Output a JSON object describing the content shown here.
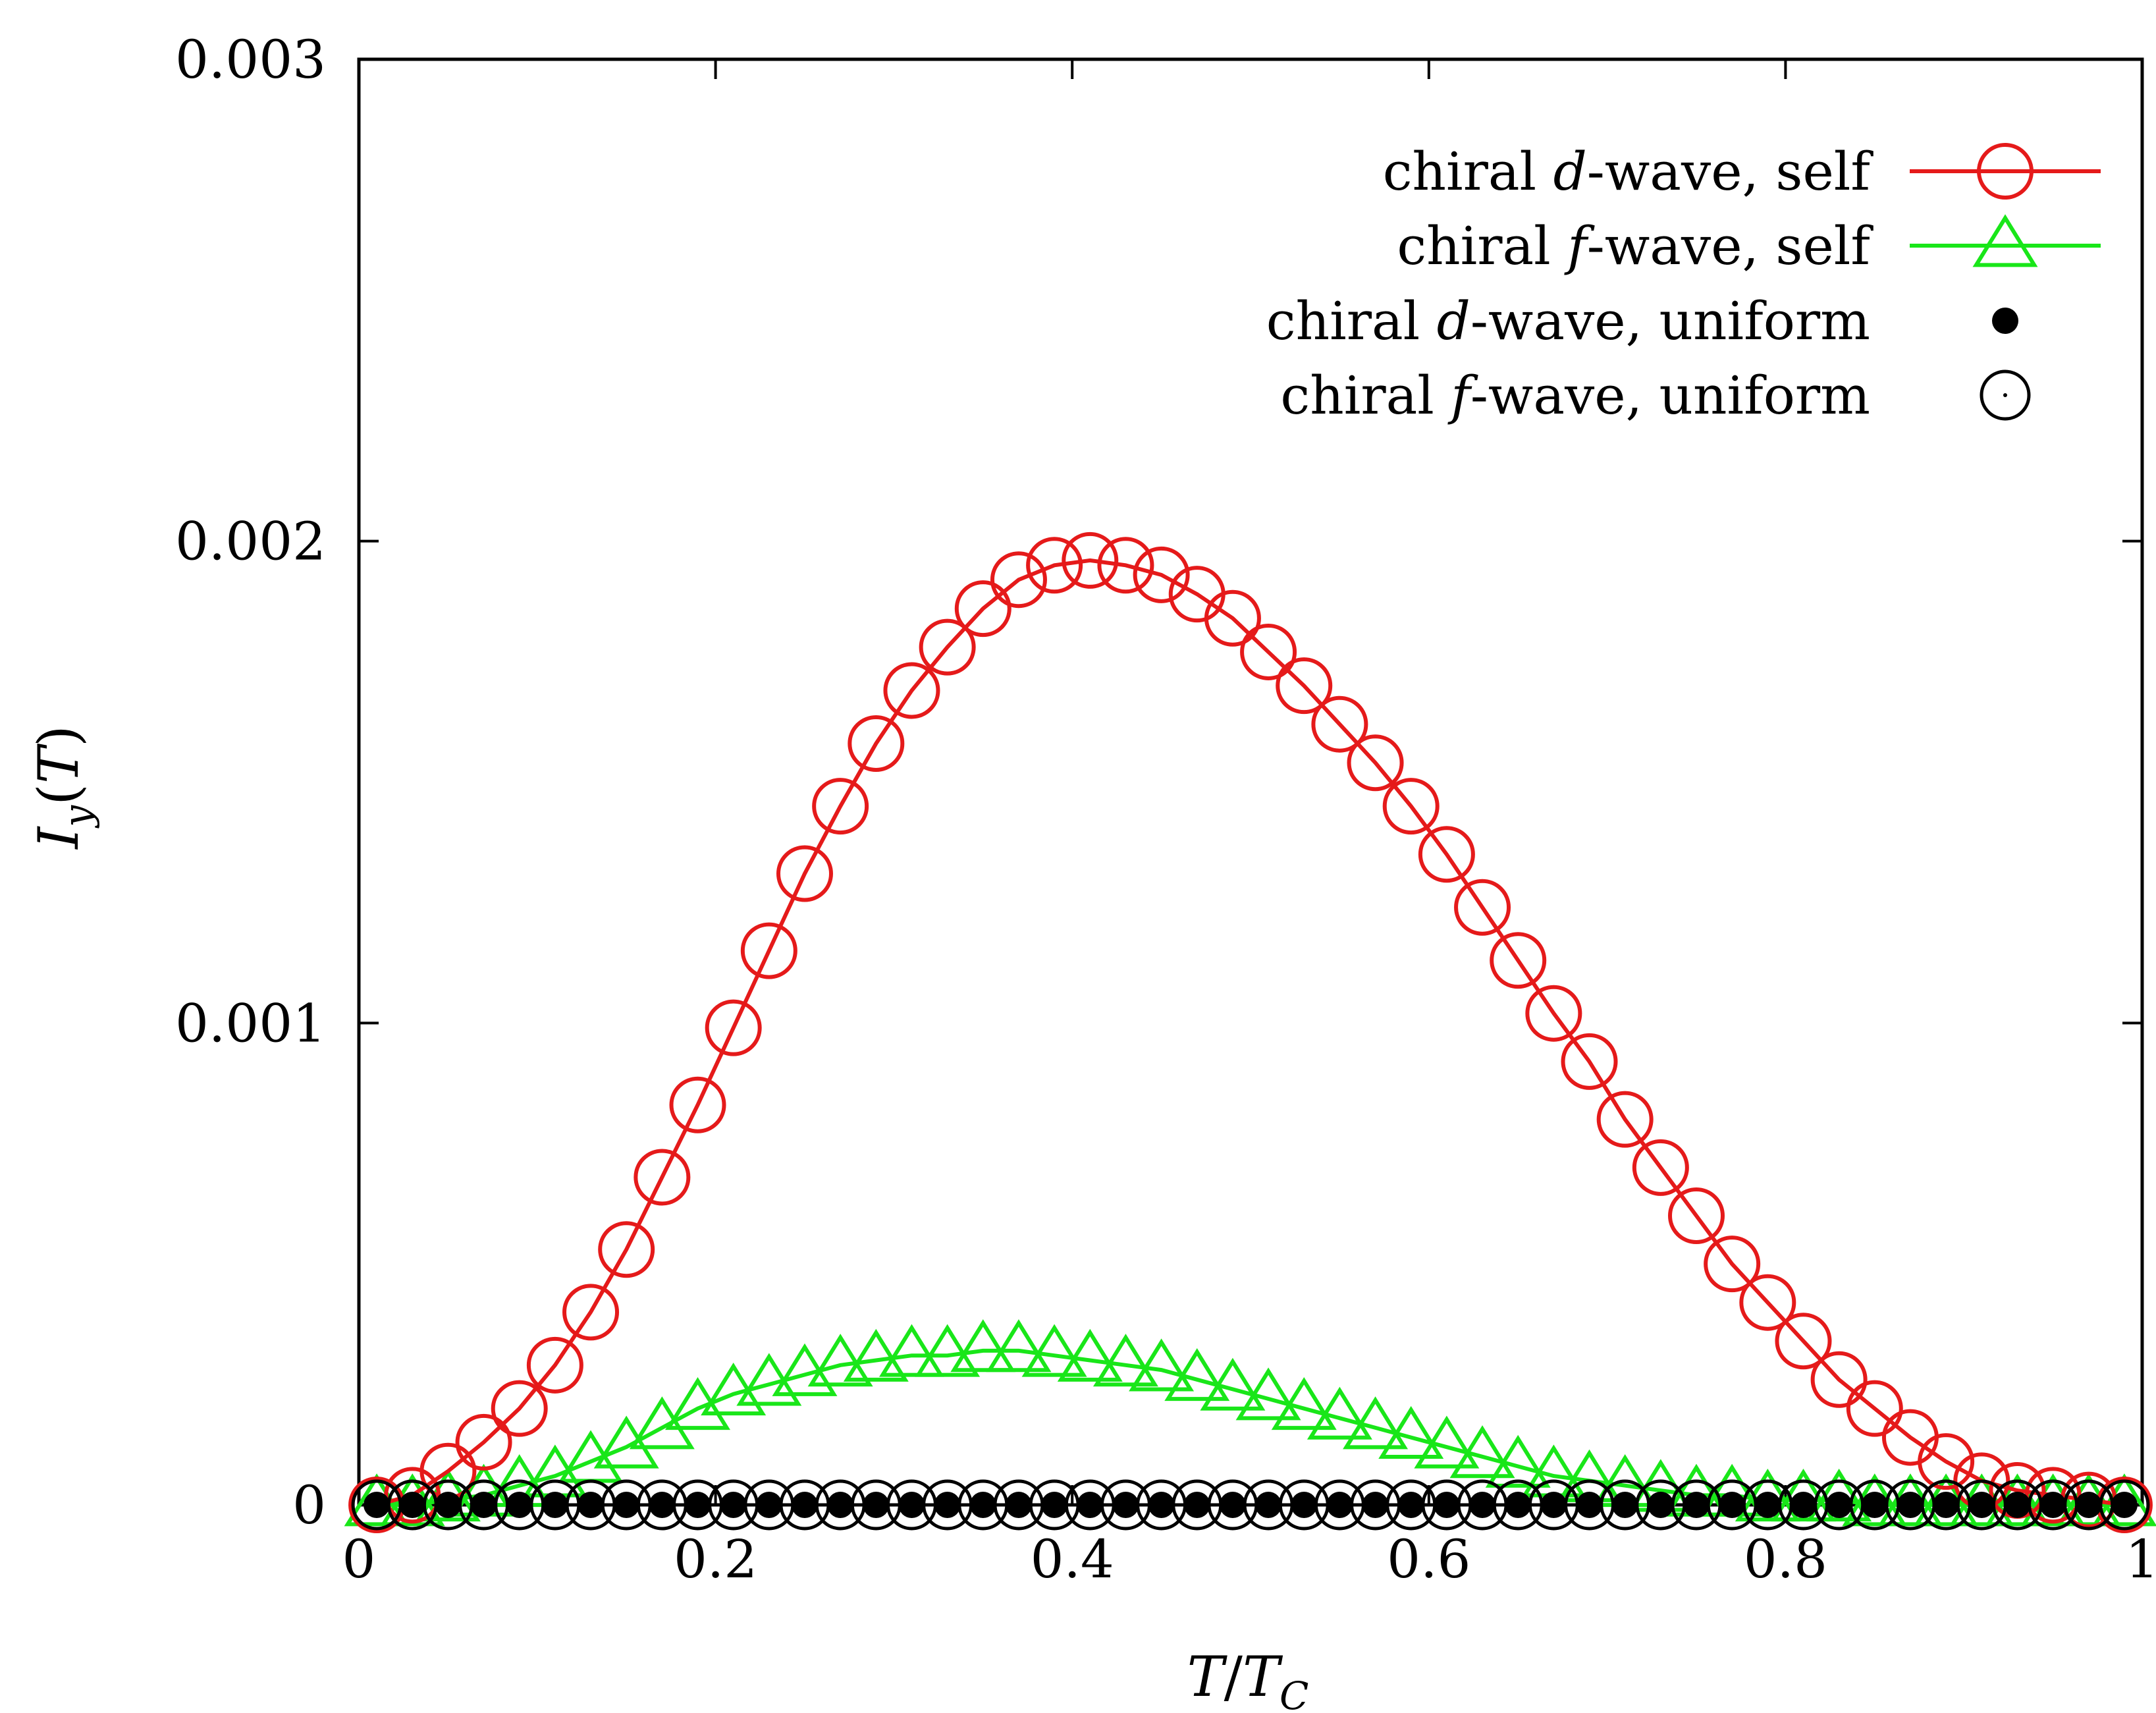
{
  "chart_data": {
    "type": "line",
    "title": "",
    "xlabel": "T/T_C",
    "ylabel": "I_y(T)",
    "xlim": [
      0,
      1
    ],
    "ylim": [
      0,
      0.003
    ],
    "grid": false,
    "legend_position": "top-right",
    "x_ticks": [
      "0",
      "0.2",
      "0.4",
      "0.6",
      "0.8",
      "1"
    ],
    "y_ticks": [
      "0",
      "0.001",
      "0.002",
      "0.003"
    ],
    "colors": {
      "d_self": "#e51a1a",
      "f_self": "#19e619",
      "uniform": "#000000"
    },
    "x": [
      0.01,
      0.03,
      0.05,
      0.07,
      0.09,
      0.11,
      0.13,
      0.15,
      0.17,
      0.19,
      0.21,
      0.23,
      0.25,
      0.27,
      0.29,
      0.31,
      0.33,
      0.35,
      0.37,
      0.39,
      0.41,
      0.43,
      0.45,
      0.47,
      0.49,
      0.51,
      0.53,
      0.55,
      0.57,
      0.59,
      0.61,
      0.63,
      0.65,
      0.67,
      0.69,
      0.71,
      0.73,
      0.75,
      0.77,
      0.79,
      0.81,
      0.83,
      0.85,
      0.87,
      0.89,
      0.91,
      0.93,
      0.95,
      0.97,
      0.99
    ],
    "series": [
      {
        "name": "chiral d-wave, self",
        "name_parts": [
          "chiral ",
          "d",
          "-wave, self"
        ],
        "marker": "open-circle",
        "line": true,
        "values": [
          0.0,
          2e-05,
          7e-05,
          0.00013,
          0.0002,
          0.00029,
          0.0004,
          0.00053,
          0.00068,
          0.00083,
          0.00099,
          0.00115,
          0.00131,
          0.00145,
          0.00158,
          0.00169,
          0.00178,
          0.00186,
          0.00192,
          0.00195,
          0.00196,
          0.00195,
          0.00193,
          0.00189,
          0.00184,
          0.00177,
          0.0017,
          0.00162,
          0.00154,
          0.00145,
          0.00135,
          0.00124,
          0.00113,
          0.00102,
          0.00092,
          0.0008,
          0.0007,
          0.0006,
          0.0005,
          0.00042,
          0.00034,
          0.00026,
          0.0002,
          0.00014,
          9e-05,
          5e-05,
          3e-05,
          2e-05,
          1e-05,
          0.0
        ]
      },
      {
        "name": "chiral f-wave, self",
        "name_parts": [
          "chiral ",
          "f",
          "-wave, self"
        ],
        "marker": "open-triangle",
        "line": true,
        "values": [
          0.0,
          0.0,
          1e-05,
          2e-05,
          4e-05,
          6e-05,
          9e-05,
          0.00012,
          0.00016,
          0.0002,
          0.00023,
          0.00025,
          0.00027,
          0.00029,
          0.0003,
          0.00031,
          0.00031,
          0.00032,
          0.00032,
          0.00031,
          0.0003,
          0.00029,
          0.00028,
          0.00026,
          0.00024,
          0.00022,
          0.0002,
          0.00018,
          0.00016,
          0.00014,
          0.00012,
          0.0001,
          8e-05,
          6e-05,
          5e-05,
          4e-05,
          3e-05,
          2e-05,
          2e-05,
          1e-05,
          1e-05,
          1e-05,
          0.0,
          0.0,
          0.0,
          0.0,
          0.0,
          0.0,
          0.0,
          0.0
        ]
      },
      {
        "name": "chiral d-wave, uniform",
        "name_parts": [
          "chiral ",
          "d",
          "-wave, uniform"
        ],
        "marker": "filled-dot",
        "line": false,
        "values": [
          0.0,
          0.0,
          0.0,
          0.0,
          0.0,
          0.0,
          0.0,
          0.0,
          0.0,
          0.0,
          0.0,
          0.0,
          0.0,
          0.0,
          0.0,
          0.0,
          0.0,
          0.0,
          0.0,
          0.0,
          0.0,
          0.0,
          0.0,
          0.0,
          0.0,
          0.0,
          0.0,
          0.0,
          0.0,
          0.0,
          0.0,
          0.0,
          0.0,
          0.0,
          0.0,
          0.0,
          0.0,
          0.0,
          0.0,
          0.0,
          0.0,
          0.0,
          0.0,
          0.0,
          0.0,
          0.0,
          0.0,
          0.0,
          0.0,
          0.0
        ]
      },
      {
        "name": "chiral f-wave, uniform",
        "name_parts": [
          "chiral ",
          "f",
          "-wave, uniform"
        ],
        "marker": "dotted-circle",
        "line": false,
        "values": [
          0.0,
          0.0,
          0.0,
          0.0,
          0.0,
          0.0,
          0.0,
          0.0,
          0.0,
          0.0,
          0.0,
          0.0,
          0.0,
          0.0,
          0.0,
          0.0,
          0.0,
          0.0,
          0.0,
          0.0,
          0.0,
          0.0,
          0.0,
          0.0,
          0.0,
          0.0,
          0.0,
          0.0,
          0.0,
          0.0,
          0.0,
          0.0,
          0.0,
          0.0,
          0.0,
          0.0,
          0.0,
          0.0,
          0.0,
          0.0,
          0.0,
          0.0,
          0.0,
          0.0,
          0.0,
          0.0,
          0.0,
          0.0,
          0.0,
          0.0
        ]
      }
    ]
  }
}
